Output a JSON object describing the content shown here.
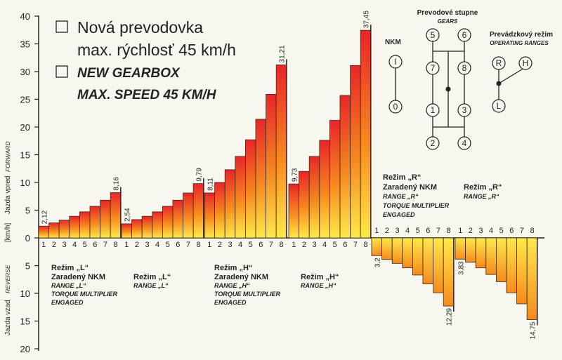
{
  "header": {
    "line1": "Nová prevodovka",
    "line2": "max. rýchlosť 45 km/h",
    "line3": "NEW GEARBOX",
    "line4": "MAX. SPEED 45 KM/H"
  },
  "y_axis": {
    "forward_label": "Jazda vpred",
    "forward_label_en": "FORWARD",
    "unit": "[km/h]",
    "reverse_label": "Jazda vzad",
    "reverse_label_en": "REVERSE",
    "ticks_forward": [
      "40",
      "35",
      "30",
      "25",
      "20",
      "15",
      "10",
      "5",
      "0"
    ],
    "ticks_reverse": [
      "5",
      "10",
      "15",
      "20"
    ]
  },
  "notes": {
    "group_L_nkm": [
      "Režim „L“",
      "Zaradený NKM",
      "RANGE „L“",
      "TORQUE MULTIPLIER",
      "ENGAGED"
    ],
    "group_L": [
      "Režim „L“",
      "RANGE „L“"
    ],
    "group_H_nkm": [
      "Režim „H“",
      "Zaradený NKM",
      "RANGE „H“",
      "TORQUE MULTIPLIER",
      "ENGAGED"
    ],
    "group_H": [
      "Režim „H“",
      "RANGE „H“"
    ],
    "group_R_nkm": [
      "Režim „R“",
      "Zaradený NKM",
      "RANGE „R“",
      "TORQUE MULTIPLIER",
      "ENGAGED"
    ],
    "group_R": [
      "Režim „R“",
      "RANGE „R“"
    ]
  },
  "diagrams": {
    "nkm_title": "NKM",
    "nkm_positions": [
      "I",
      "0"
    ],
    "gears_title": "Prevodové stupne",
    "gears_title_en": "GEARS",
    "gear_positions": [
      "5",
      "6",
      "7",
      "8",
      "1",
      "3",
      "2",
      "4"
    ],
    "ranges_title": "Prevádzkový režim",
    "ranges_title_en": "OPERATING RANGES",
    "range_positions": [
      "R",
      "H",
      "L"
    ]
  },
  "colors": {
    "bar_top": "#e8252a",
    "bar_mid": "#f78a1e",
    "bar_bottom": "#ffe94a",
    "bar_stroke": "#3a2a10",
    "text": "#222222"
  },
  "chart_data": {
    "type": "bar",
    "title": "",
    "xlabel": "",
    "ylabel": "[km/h]",
    "ylim": [
      -20,
      40
    ],
    "categories": [
      "1",
      "2",
      "3",
      "4",
      "5",
      "6",
      "7",
      "8"
    ],
    "series": [
      {
        "name": "Režim „L“ – Zaradený NKM",
        "values": [
          2.12,
          2.7,
          3.2,
          3.9,
          4.7,
          5.7,
          6.8,
          8.16
        ],
        "labels": [
          "2,12",
          "",
          "",
          "",
          "",
          "",
          "",
          "8,16"
        ]
      },
      {
        "name": "Režim „L“",
        "values": [
          2.54,
          3.3,
          3.9,
          4.7,
          5.7,
          6.8,
          8.1,
          9.79
        ],
        "labels": [
          "2,54",
          "",
          "",
          "",
          "",
          "",
          "",
          "9,79"
        ]
      },
      {
        "name": "Režim „H“ – Zaradený NKM",
        "values": [
          8.11,
          10.0,
          12.3,
          14.7,
          17.7,
          21.4,
          25.9,
          31.21
        ],
        "labels": [
          "8,11",
          "",
          "",
          "",
          "",
          "",
          "",
          "31,21"
        ]
      },
      {
        "name": "Režim „H“",
        "values": [
          9.73,
          12.0,
          14.7,
          17.6,
          21.2,
          25.7,
          31.1,
          37.45
        ],
        "labels": [
          "9,73",
          "",
          "",
          "",
          "",
          "",
          "",
          "37,45"
        ]
      },
      {
        "name": "Režim „R“ – Zaradený NKM",
        "values": [
          -3.2,
          -3.9,
          -4.6,
          -5.4,
          -6.7,
          -8.3,
          -9.9,
          -12.29
        ],
        "labels": [
          "3,2",
          "",
          "",
          "",
          "",
          "",
          "",
          "12,29"
        ]
      },
      {
        "name": "Režim „R“",
        "values": [
          -3.83,
          -4.4,
          -5.4,
          -6.6,
          -7.9,
          -9.9,
          -11.9,
          -14.75
        ],
        "labels": [
          "3,83",
          "",
          "",
          "",
          "",
          "",
          "",
          "14,75"
        ]
      }
    ]
  }
}
